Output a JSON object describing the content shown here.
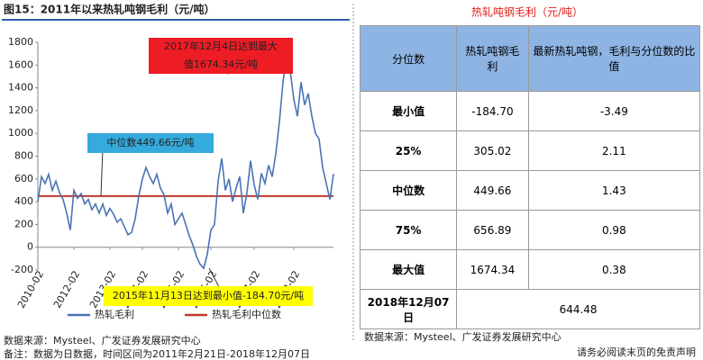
{
  "chart_data": {
    "type": "line",
    "title": "图15：2011年以来热轧吨钢毛利（元/吨）",
    "categories": [
      "2010-02",
      null,
      null,
      null,
      null,
      null,
      null,
      null,
      null,
      null,
      "2012-02",
      null,
      null,
      null,
      null,
      null,
      null,
      null,
      null,
      null,
      "2013-02",
      null,
      null,
      null,
      null,
      null,
      null,
      null,
      null,
      "2014-02",
      null,
      null,
      null,
      null,
      null,
      null,
      null,
      null,
      null,
      "2015-02",
      null,
      null,
      null,
      null,
      null,
      null,
      null,
      null,
      "2016-02",
      null,
      null,
      null,
      null,
      null,
      null,
      null,
      null,
      null,
      null,
      null,
      "2017-02",
      null,
      null,
      null,
      null,
      null,
      null,
      null,
      null,
      null,
      null,
      "2018-02",
      null,
      null,
      null,
      null,
      null,
      null,
      null,
      null,
      null,
      null,
      null
    ],
    "series": [
      {
        "name": "热轧毛利",
        "color": "#4a74b4",
        "values": [
          400,
          620,
          560,
          640,
          500,
          580,
          480,
          420,
          300,
          150,
          500,
          430,
          470,
          380,
          420,
          330,
          380,
          300,
          380,
          280,
          340,
          290,
          220,
          250,
          180,
          110,
          130,
          250,
          450,
          600,
          700,
          620,
          560,
          640,
          520,
          460,
          300,
          380,
          200,
          250,
          300,
          200,
          100,
          20,
          -80,
          -150,
          -184.7,
          -60,
          150,
          200,
          580,
          780,
          500,
          600,
          400,
          520,
          620,
          300,
          480,
          760,
          550,
          420,
          650,
          560,
          720,
          620,
          820,
          1100,
          1450,
          1674.34,
          1550,
          1300,
          1150,
          1450,
          1250,
          1350,
          1150,
          1000,
          950,
          700,
          560,
          420,
          644.48
        ]
      }
    ],
    "median": {
      "name": "热轧毛利中位数",
      "color": "#c0392b",
      "value": 449.66
    },
    "ylim": [
      -200,
      1800
    ],
    "yticks": [
      -200,
      0,
      200,
      400,
      600,
      800,
      1000,
      1200,
      1400,
      1600,
      1800
    ],
    "annotations": [
      {
        "lines": [
          "2017年12月4日达到最大",
          "值1674.34元/吨"
        ],
        "color": "#ee1c25"
      },
      {
        "lines": [
          "中位数449.66元/吨"
        ],
        "color": "#35aadc"
      },
      {
        "lines": [
          "2015年11月13日达到最小值-184.70元/吨"
        ],
        "color": "#ffff00"
      }
    ],
    "source": "数据来源：Mysteel、广发证券发展研究中心",
    "note": "备注：数据为日数据，时间区间为2011年2月21日-2018年12月07日"
  },
  "table": {
    "title": "热轧吨钢毛利（元/吨）",
    "header": [
      "分位数",
      "热轧吨钢毛利",
      "最新热轧吨钢，毛利与分位数的比值"
    ],
    "rows": [
      [
        "最小值",
        "-184.70",
        "-3.49"
      ],
      [
        "25%",
        "305.02",
        "2.11"
      ],
      [
        "中位数",
        "449.66",
        "1.43"
      ],
      [
        "75%",
        "656.89",
        "0.98"
      ],
      [
        "最大值",
        "1674.34",
        "0.38"
      ]
    ],
    "footer": [
      "2018年12月07日",
      "644.48"
    ],
    "source": "数据来源：Mysteel、广发证券发展研究中心"
  },
  "disclaimer": "请务必阅读末页的免责声明"
}
